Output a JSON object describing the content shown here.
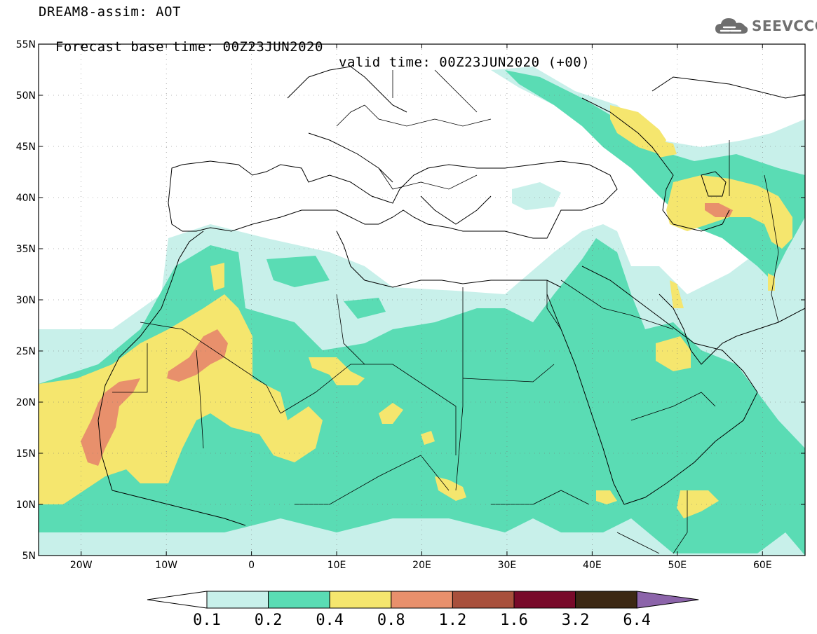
{
  "title": {
    "line1": "DREAM8-assim: AOT",
    "base_time": "Forecast base time: 00Z23JUN2020",
    "valid_time": "valid time: 00Z23JUN2020 (+00)"
  },
  "logo": {
    "text": "SEEVCCC",
    "icon": "cloud-icon"
  },
  "map": {
    "lon_range": [
      -25,
      65
    ],
    "lat_range": [
      5,
      55
    ],
    "lat_ticks": [
      {
        "value": 5,
        "label": "5N"
      },
      {
        "value": 10,
        "label": "10N"
      },
      {
        "value": 15,
        "label": "15N"
      },
      {
        "value": 20,
        "label": "20N"
      },
      {
        "value": 25,
        "label": "25N"
      },
      {
        "value": 30,
        "label": "30N"
      },
      {
        "value": 35,
        "label": "35N"
      },
      {
        "value": 40,
        "label": "40N"
      },
      {
        "value": 45,
        "label": "45N"
      },
      {
        "value": 50,
        "label": "50N"
      },
      {
        "value": 55,
        "label": "55N"
      }
    ],
    "lon_ticks": [
      {
        "value": -20,
        "label": "20W"
      },
      {
        "value": -10,
        "label": "10W"
      },
      {
        "value": 0,
        "label": "0"
      },
      {
        "value": 10,
        "label": "10E"
      },
      {
        "value": 20,
        "label": "20E"
      },
      {
        "value": 30,
        "label": "30E"
      },
      {
        "value": 40,
        "label": "40E"
      },
      {
        "value": 50,
        "label": "50E"
      },
      {
        "value": 60,
        "label": "60E"
      }
    ],
    "grid": "dotted",
    "colors": {
      "c01": "#c8f0ea",
      "c02": "#5adcb4",
      "c04": "#f5e66e",
      "c08": "#e8906c",
      "c12": "#a8503c",
      "c16": "#780a2a",
      "c32": "#3c2814",
      "c64": "#8c64aa"
    }
  },
  "colorbar": {
    "levels": [
      "0.1",
      "0.2",
      "0.4",
      "0.8",
      "1.2",
      "1.6",
      "3.2",
      "6.4"
    ],
    "bins": [
      "#c8f0ea",
      "#5adcb4",
      "#f5e66e",
      "#e8906c",
      "#a8503c",
      "#780a2a",
      "#3c2814"
    ],
    "below": "#ffffff",
    "above": "#8c64aa"
  }
}
